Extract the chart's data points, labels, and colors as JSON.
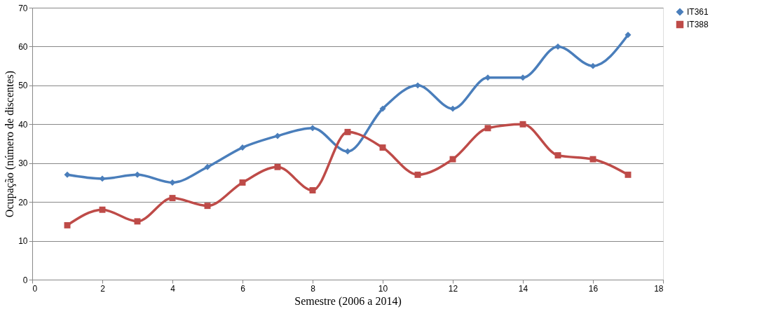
{
  "chart_data": {
    "type": "line",
    "xlabel": "Semestre (2006 a 2014)",
    "ylabel": "Ocupação (número de discentes)",
    "x": [
      1,
      2,
      3,
      4,
      5,
      6,
      7,
      8,
      9,
      10,
      11,
      12,
      13,
      14,
      15,
      16,
      17
    ],
    "series": [
      {
        "name": "IT361",
        "color": "#4a7ebb",
        "marker": "diamond",
        "values": [
          27,
          26,
          27,
          25,
          29,
          34,
          37,
          39,
          33,
          44,
          50,
          44,
          52,
          52,
          60,
          55,
          63
        ]
      },
      {
        "name": "IT388",
        "color": "#be4b48",
        "marker": "square",
        "values": [
          14,
          18,
          15,
          21,
          19,
          25,
          29,
          23,
          38,
          34,
          27,
          31,
          39,
          40,
          32,
          31,
          27
        ]
      }
    ],
    "xlim": [
      0,
      18
    ],
    "xticks": [
      0,
      2,
      4,
      6,
      8,
      10,
      12,
      14,
      16,
      18
    ],
    "ylim": [
      0,
      70
    ],
    "yticks": [
      0,
      10,
      20,
      30,
      40,
      50,
      60,
      70
    ],
    "grid": "y",
    "legend": "right",
    "line_style": "solid"
  }
}
